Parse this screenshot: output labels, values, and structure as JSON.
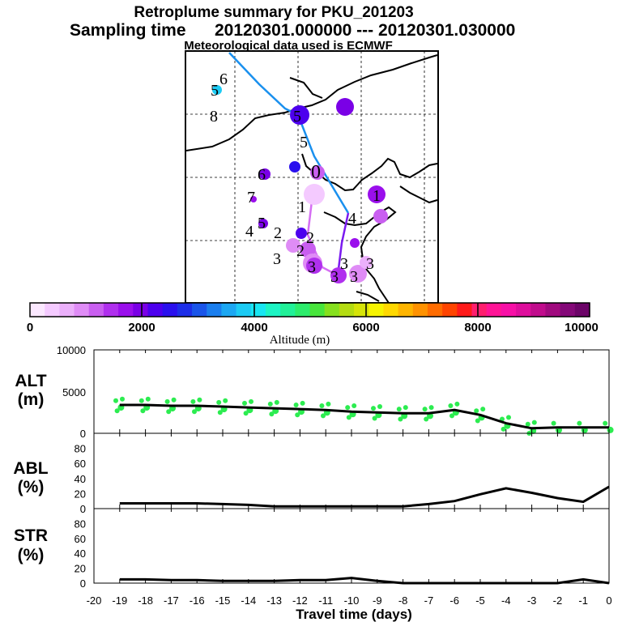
{
  "header": {
    "title": "Retroplume summary for PKU_201203",
    "sampling_label": "Sampling time",
    "sampling_range": "20120301.000000 --- 20120301.030000",
    "met_note": "Meteorological data used is ECMWF"
  },
  "colorbar": {
    "title": "Altitude (m)",
    "tick_labels": [
      "0",
      "2000",
      "4000",
      "6000",
      "8000",
      "10000"
    ],
    "colors": [
      "#fbe8ff",
      "#f4caff",
      "#ebb0fb",
      "#df8cf6",
      "#c95ff0",
      "#b030ee",
      "#9a0fec",
      "#7a00e6",
      "#4d00ee",
      "#2a10ee",
      "#1d2ee8",
      "#1a55ea",
      "#1a7eee",
      "#1ca7f2",
      "#1ccbf4",
      "#18e6f2",
      "#1df4c4",
      "#21f098",
      "#2cec6c",
      "#48e53c",
      "#86e01e",
      "#b4dc12",
      "#d6e408",
      "#f6f300",
      "#ffd800",
      "#ffb500",
      "#ff9200",
      "#ff6c00",
      "#ff4400",
      "#ff1a1a",
      "#ff1e6e",
      "#ff1496",
      "#f710a6",
      "#de0e9c",
      "#c00c8c",
      "#a00a7e",
      "#840878",
      "#6c0468"
    ]
  },
  "map": {
    "labels": [
      "5",
      "6",
      "8",
      "6",
      "5",
      "5",
      "0",
      "7",
      "1",
      "1",
      "4",
      "5",
      "4",
      "2",
      "2",
      "3",
      "2",
      "3",
      "3",
      "3",
      "3",
      "3"
    ],
    "line_color_primary": "#1a90ee",
    "line_color_secondary": "#7a1af0",
    "line_color_tertiary": "#d56ef3"
  },
  "chart_data": [
    {
      "type": "line",
      "panel": "ALT",
      "ylabel": [
        "ALT",
        "(m)"
      ],
      "ylim": [
        0,
        10000
      ],
      "ytick_labels": [
        "10000",
        "5000",
        "0"
      ],
      "xlim": [
        -20,
        0
      ],
      "x": [
        -19,
        -18,
        -17,
        -16,
        -15,
        -14,
        -13,
        -12,
        -11,
        -10,
        -9,
        -8,
        -7,
        -6,
        -5,
        -4,
        -3,
        -2,
        -1,
        0
      ],
      "series": [
        {
          "name": "mean altitude",
          "values": [
            3400,
            3400,
            3300,
            3300,
            3200,
            3100,
            3000,
            2900,
            2800,
            2600,
            2500,
            2400,
            2400,
            2800,
            2200,
            1200,
            600,
            700,
            700,
            700
          ]
        }
      ],
      "scatter_color": "#2cec50"
    },
    {
      "type": "line",
      "panel": "ABL",
      "ylabel": [
        "ABL",
        "(%)"
      ],
      "ylim": [
        0,
        100
      ],
      "ytick_labels": [
        "80",
        "60",
        "40",
        "20",
        "0"
      ],
      "xlim": [
        -20,
        0
      ],
      "x": [
        -19,
        -18,
        -17,
        -16,
        -15,
        -14,
        -13,
        -12,
        -11,
        -10,
        -9,
        -8,
        -7,
        -6,
        -5,
        -4,
        -3,
        -2,
        -1,
        0
      ],
      "series": [
        {
          "name": "ABL fraction",
          "values": [
            7,
            7,
            7,
            7,
            6,
            5,
            3,
            3,
            3,
            3,
            3,
            3,
            6,
            10,
            19,
            27,
            21,
            14,
            9,
            29
          ]
        }
      ]
    },
    {
      "type": "line",
      "panel": "STR",
      "ylabel": [
        "STR",
        "(%)"
      ],
      "ylim": [
        0,
        100
      ],
      "ytick_labels": [
        "80",
        "60",
        "40",
        "20",
        "0"
      ],
      "xlim": [
        -20,
        0
      ],
      "xlabel": "Travel time (days)",
      "xtick_labels": [
        "-20",
        "-19",
        "-18",
        "-17",
        "-16",
        "-15",
        "-14",
        "-13",
        "-12",
        "-11",
        "-10",
        "-9",
        "-8",
        "-7",
        "-6",
        "-5",
        "-4",
        "-3",
        "-2",
        "-1",
        "0"
      ],
      "x": [
        -19,
        -18,
        -17,
        -16,
        -15,
        -14,
        -13,
        -12,
        -11,
        -10,
        -9,
        -8,
        -7,
        -6,
        -5,
        -4,
        -3,
        -2,
        -1,
        0
      ],
      "series": [
        {
          "name": "stratosphere fraction",
          "values": [
            5,
            5,
            4,
            4,
            3,
            3,
            3,
            4,
            4,
            7,
            3,
            0,
            0,
            0,
            0,
            0,
            0,
            0,
            5,
            0
          ]
        }
      ]
    }
  ]
}
